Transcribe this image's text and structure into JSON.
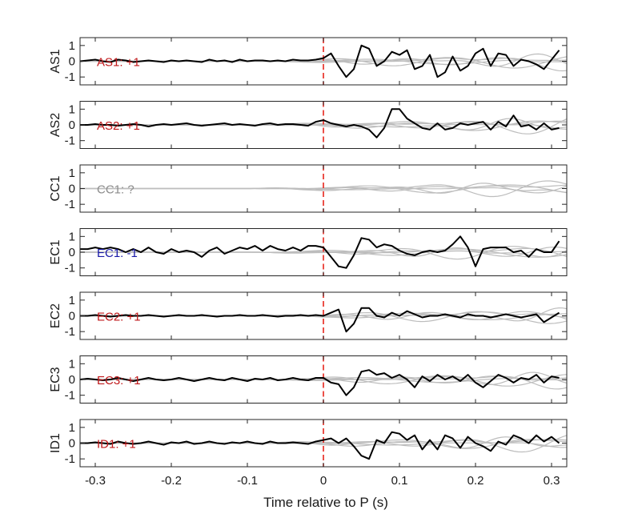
{
  "figure": {
    "xlabel": "Time relative to P (s)",
    "x_tick_labels": [
      "-0.3",
      "-0.2",
      "-0.1",
      "0",
      "0.1",
      "0.2",
      "0.3"
    ],
    "y_tick_labels": [
      "1",
      "0",
      "-1"
    ]
  },
  "colors": {
    "trace": "#000000",
    "background_traces": "#bdbdbd",
    "p_marker": "#e8241b",
    "label_positive": "#c0191b",
    "label_negative": "#1a1aa8",
    "label_unknown": "#8c8c8c"
  },
  "chart_data": [
    {
      "type": "line",
      "panel": "AS1",
      "ylabel": "AS1",
      "annotation": "AS1: +1",
      "polarity": "positive",
      "xlim": [
        -0.32,
        0.32
      ],
      "ylim": [
        -1.5,
        1.5
      ],
      "marker_x": 0,
      "x": [
        -0.32,
        -0.31,
        -0.3,
        -0.29,
        -0.28,
        -0.27,
        -0.26,
        -0.25,
        -0.24,
        -0.23,
        -0.22,
        -0.21,
        -0.2,
        -0.19,
        -0.18,
        -0.17,
        -0.16,
        -0.15,
        -0.14,
        -0.13,
        -0.12,
        -0.11,
        -0.1,
        -0.09,
        -0.08,
        -0.07,
        -0.06,
        -0.05,
        -0.04,
        -0.03,
        -0.02,
        -0.01,
        0,
        0.01,
        0.02,
        0.03,
        0.04,
        0.05,
        0.06,
        0.07,
        0.08,
        0.09,
        0.1,
        0.11,
        0.12,
        0.13,
        0.14,
        0.15,
        0.16,
        0.17,
        0.18,
        0.19,
        0.2,
        0.21,
        0.22,
        0.23,
        0.24,
        0.25,
        0.26,
        0.27,
        0.28,
        0.29,
        0.3,
        0.31
      ],
      "series": [
        {
          "values": [
            0.0,
            0.05,
            0.1,
            0.0,
            -0.05,
            0.1,
            0.05,
            -0.05,
            0.0,
            0.05,
            0.0,
            -0.05,
            0.05,
            0.0,
            0.05,
            0.0,
            -0.05,
            0.1,
            0.0,
            0.05,
            -0.05,
            0.1,
            0.0,
            0.05,
            0.05,
            0.0,
            0.05,
            0.0,
            0.1,
            0.05,
            0.05,
            0.1,
            0.2,
            0.5,
            -0.3,
            -1.0,
            -0.5,
            1.0,
            0.8,
            -0.3,
            0.0,
            0.6,
            0.4,
            0.7,
            -0.5,
            -0.3,
            0.4,
            -1.0,
            -0.7,
            0.3,
            -0.6,
            -0.3,
            0.5,
            0.8,
            -0.3,
            0.5,
            0.4,
            -0.3,
            0.1,
            0.0,
            -0.2,
            -0.5,
            0.1,
            0.7
          ]
        }
      ]
    },
    {
      "type": "line",
      "panel": "AS2",
      "ylabel": "AS2",
      "annotation": "AS2: +1",
      "polarity": "positive",
      "xlim": [
        -0.32,
        0.32
      ],
      "ylim": [
        -1.5,
        1.5
      ],
      "marker_x": 0,
      "x": [
        -0.32,
        -0.31,
        -0.3,
        -0.29,
        -0.28,
        -0.27,
        -0.26,
        -0.25,
        -0.24,
        -0.23,
        -0.22,
        -0.21,
        -0.2,
        -0.19,
        -0.18,
        -0.17,
        -0.16,
        -0.15,
        -0.14,
        -0.13,
        -0.12,
        -0.11,
        -0.1,
        -0.09,
        -0.08,
        -0.07,
        -0.06,
        -0.05,
        -0.04,
        -0.03,
        -0.02,
        -0.01,
        0,
        0.01,
        0.02,
        0.03,
        0.04,
        0.05,
        0.06,
        0.07,
        0.08,
        0.09,
        0.1,
        0.11,
        0.12,
        0.13,
        0.14,
        0.15,
        0.16,
        0.17,
        0.18,
        0.19,
        0.2,
        0.21,
        0.22,
        0.23,
        0.24,
        0.25,
        0.26,
        0.27,
        0.28,
        0.29,
        0.3,
        0.31
      ],
      "series": [
        {
          "values": [
            0.0,
            0.0,
            0.05,
            0.0,
            0.0,
            -0.05,
            0.0,
            0.05,
            0.0,
            -0.1,
            0.0,
            0.05,
            0.0,
            0.05,
            0.1,
            0.0,
            -0.05,
            0.0,
            0.05,
            0.1,
            0.0,
            0.05,
            0.0,
            -0.05,
            0.05,
            0.1,
            0.0,
            0.05,
            0.05,
            0.0,
            -0.05,
            0.2,
            0.3,
            0.1,
            0.0,
            -0.1,
            0.0,
            -0.1,
            -0.3,
            -0.8,
            -0.2,
            1.0,
            1.0,
            0.4,
            0.1,
            -0.2,
            -0.3,
            0.1,
            -0.3,
            -0.2,
            0.1,
            0.0,
            0.1,
            0.2,
            -0.3,
            0.2,
            -0.1,
            0.6,
            -0.1,
            0.0,
            -0.3,
            0.1,
            -0.3,
            -0.2
          ]
        }
      ]
    },
    {
      "type": "line",
      "panel": "CC1",
      "ylabel": "CC1",
      "annotation": "CC1: ?",
      "polarity": "unknown",
      "xlim": [
        -0.32,
        0.32
      ],
      "ylim": [
        -1.5,
        1.5
      ],
      "marker_x": 0,
      "x": [],
      "series": []
    },
    {
      "type": "line",
      "panel": "EC1",
      "ylabel": "EC1",
      "annotation": "EC1: -1",
      "polarity": "negative",
      "xlim": [
        -0.32,
        0.32
      ],
      "ylim": [
        -1.5,
        1.5
      ],
      "marker_x": 0,
      "x": [
        -0.32,
        -0.31,
        -0.3,
        -0.29,
        -0.28,
        -0.27,
        -0.26,
        -0.25,
        -0.24,
        -0.23,
        -0.22,
        -0.21,
        -0.2,
        -0.19,
        -0.18,
        -0.17,
        -0.16,
        -0.15,
        -0.14,
        -0.13,
        -0.12,
        -0.11,
        -0.1,
        -0.09,
        -0.08,
        -0.07,
        -0.06,
        -0.05,
        -0.04,
        -0.03,
        -0.02,
        -0.01,
        0,
        0.01,
        0.02,
        0.03,
        0.04,
        0.05,
        0.06,
        0.07,
        0.08,
        0.09,
        0.1,
        0.11,
        0.12,
        0.13,
        0.14,
        0.15,
        0.16,
        0.17,
        0.18,
        0.19,
        0.2,
        0.21,
        0.22,
        0.23,
        0.24,
        0.25,
        0.26,
        0.27,
        0.28,
        0.29,
        0.3,
        0.31
      ],
      "series": [
        {
          "values": [
            0.2,
            0.2,
            0.3,
            0.2,
            0.3,
            0.2,
            0.0,
            0.2,
            0.0,
            0.3,
            0.0,
            -0.1,
            0.2,
            0.0,
            0.1,
            0.0,
            -0.3,
            0.1,
            0.3,
            -0.1,
            0.1,
            0.3,
            0.2,
            0.4,
            0.1,
            0.4,
            0.2,
            0.1,
            0.3,
            0.1,
            0.4,
            0.4,
            0.3,
            -0.3,
            -0.9,
            -1.0,
            -0.2,
            0.9,
            0.8,
            0.3,
            0.5,
            0.4,
            0.1,
            -0.1,
            -0.2,
            0.0,
            0.1,
            0.0,
            0.1,
            0.5,
            1.0,
            0.3,
            -0.9,
            0.2,
            0.3,
            0.3,
            0.3,
            0.0,
            0.1,
            -0.3,
            0.2,
            0.0,
            0.0,
            0.7
          ]
        }
      ]
    },
    {
      "type": "line",
      "panel": "EC2",
      "ylabel": "EC2",
      "annotation": "EC2: +1",
      "polarity": "positive",
      "xlim": [
        -0.32,
        0.32
      ],
      "ylim": [
        -1.5,
        1.5
      ],
      "marker_x": 0,
      "x": [
        -0.32,
        -0.31,
        -0.3,
        -0.29,
        -0.28,
        -0.27,
        -0.26,
        -0.25,
        -0.24,
        -0.23,
        -0.22,
        -0.21,
        -0.2,
        -0.19,
        -0.18,
        -0.17,
        -0.16,
        -0.15,
        -0.14,
        -0.13,
        -0.12,
        -0.11,
        -0.1,
        -0.09,
        -0.08,
        -0.07,
        -0.06,
        -0.05,
        -0.04,
        -0.03,
        -0.02,
        -0.01,
        0,
        0.01,
        0.02,
        0.03,
        0.04,
        0.05,
        0.06,
        0.07,
        0.08,
        0.09,
        0.1,
        0.11,
        0.12,
        0.13,
        0.14,
        0.15,
        0.16,
        0.17,
        0.18,
        0.19,
        0.2,
        0.21,
        0.22,
        0.23,
        0.24,
        0.25,
        0.26,
        0.27,
        0.28,
        0.29,
        0.3,
        0.31
      ],
      "series": [
        {
          "values": [
            0.0,
            0.0,
            0.05,
            0.0,
            -0.05,
            0.0,
            0.05,
            0.0,
            0.0,
            0.05,
            0.0,
            -0.05,
            0.0,
            0.05,
            0.0,
            0.0,
            0.05,
            0.0,
            -0.05,
            0.0,
            0.0,
            0.05,
            0.0,
            0.0,
            0.05,
            0.0,
            -0.05,
            0.0,
            0.0,
            0.05,
            0.0,
            0.05,
            0.0,
            0.2,
            0.4,
            -1.0,
            -0.5,
            0.5,
            0.5,
            0.0,
            -0.1,
            0.2,
            0.0,
            0.3,
            0.1,
            -0.1,
            0.0,
            0.0,
            0.1,
            0.0,
            -0.1,
            0.1,
            0.0,
            0.0,
            -0.1,
            0.0,
            0.1,
            0.0,
            -0.1,
            0.0,
            0.1,
            -0.4,
            -0.1,
            0.2
          ]
        }
      ]
    },
    {
      "type": "line",
      "panel": "EC3",
      "ylabel": "EC3",
      "annotation": "EC3: +1",
      "polarity": "positive",
      "xlim": [
        -0.32,
        0.32
      ],
      "ylim": [
        -1.5,
        1.5
      ],
      "marker_x": 0,
      "x": [
        -0.32,
        -0.31,
        -0.3,
        -0.29,
        -0.28,
        -0.27,
        -0.26,
        -0.25,
        -0.24,
        -0.23,
        -0.22,
        -0.21,
        -0.2,
        -0.19,
        -0.18,
        -0.17,
        -0.16,
        -0.15,
        -0.14,
        -0.13,
        -0.12,
        -0.11,
        -0.1,
        -0.09,
        -0.08,
        -0.07,
        -0.06,
        -0.05,
        -0.04,
        -0.03,
        -0.02,
        -0.01,
        0,
        0.01,
        0.02,
        0.03,
        0.04,
        0.05,
        0.06,
        0.07,
        0.08,
        0.09,
        0.1,
        0.11,
        0.12,
        0.13,
        0.14,
        0.15,
        0.16,
        0.17,
        0.18,
        0.19,
        0.2,
        0.21,
        0.22,
        0.23,
        0.24,
        0.25,
        0.26,
        0.27,
        0.28,
        0.29,
        0.3,
        0.31
      ],
      "series": [
        {
          "values": [
            0.0,
            0.05,
            0.0,
            -0.05,
            0.0,
            0.1,
            0.0,
            -0.1,
            0.0,
            0.1,
            0.0,
            -0.05,
            0.0,
            0.1,
            0.0,
            -0.1,
            0.0,
            0.1,
            0.0,
            -0.05,
            0.1,
            0.0,
            -0.1,
            0.05,
            0.0,
            0.1,
            -0.05,
            0.0,
            0.1,
            0.0,
            -0.05,
            0.1,
            0.1,
            -0.2,
            -0.3,
            -1.0,
            -0.5,
            0.5,
            0.6,
            0.3,
            0.4,
            0.1,
            0.3,
            0.0,
            -0.5,
            0.2,
            -0.1,
            0.3,
            0.0,
            0.2,
            -0.1,
            0.3,
            -0.2,
            -0.5,
            -0.1,
            0.3,
            0.1,
            -0.2,
            0.1,
            0.0,
            0.3,
            -0.2,
            0.2,
            0.1
          ]
        }
      ]
    },
    {
      "type": "line",
      "panel": "ID1",
      "ylabel": "ID1",
      "annotation": "ID1: +1",
      "polarity": "positive",
      "xlim": [
        -0.32,
        0.32
      ],
      "ylim": [
        -1.5,
        1.5
      ],
      "marker_x": 0,
      "x": [
        -0.32,
        -0.31,
        -0.3,
        -0.29,
        -0.28,
        -0.27,
        -0.26,
        -0.25,
        -0.24,
        -0.23,
        -0.22,
        -0.21,
        -0.2,
        -0.19,
        -0.18,
        -0.17,
        -0.16,
        -0.15,
        -0.14,
        -0.13,
        -0.12,
        -0.11,
        -0.1,
        -0.09,
        -0.08,
        -0.07,
        -0.06,
        -0.05,
        -0.04,
        -0.03,
        -0.02,
        -0.01,
        0,
        0.01,
        0.02,
        0.03,
        0.04,
        0.05,
        0.06,
        0.07,
        0.08,
        0.09,
        0.1,
        0.11,
        0.12,
        0.13,
        0.14,
        0.15,
        0.16,
        0.17,
        0.18,
        0.19,
        0.2,
        0.21,
        0.22,
        0.23,
        0.24,
        0.25,
        0.26,
        0.27,
        0.28,
        0.29,
        0.3,
        0.31
      ],
      "series": [
        {
          "values": [
            0.0,
            0.0,
            0.05,
            0.0,
            -0.05,
            0.1,
            0.0,
            -0.05,
            0.0,
            0.1,
            0.0,
            -0.1,
            0.05,
            0.0,
            0.1,
            -0.05,
            0.0,
            0.1,
            0.0,
            -0.05,
            0.05,
            0.0,
            0.1,
            0.0,
            -0.05,
            0.1,
            0.0,
            0.0,
            0.05,
            0.0,
            -0.05,
            0.1,
            0.2,
            0.3,
            0.0,
            0.3,
            -0.2,
            -0.8,
            -1.0,
            0.2,
            0.0,
            0.7,
            0.6,
            0.2,
            0.5,
            -0.4,
            0.2,
            -0.4,
            0.5,
            0.3,
            -0.3,
            0.4,
            0.0,
            -0.2,
            -0.5,
            0.1,
            -0.1,
            0.5,
            0.3,
            0.0,
            0.5,
            0.1,
            0.4,
            0.0
          ]
        }
      ]
    }
  ]
}
